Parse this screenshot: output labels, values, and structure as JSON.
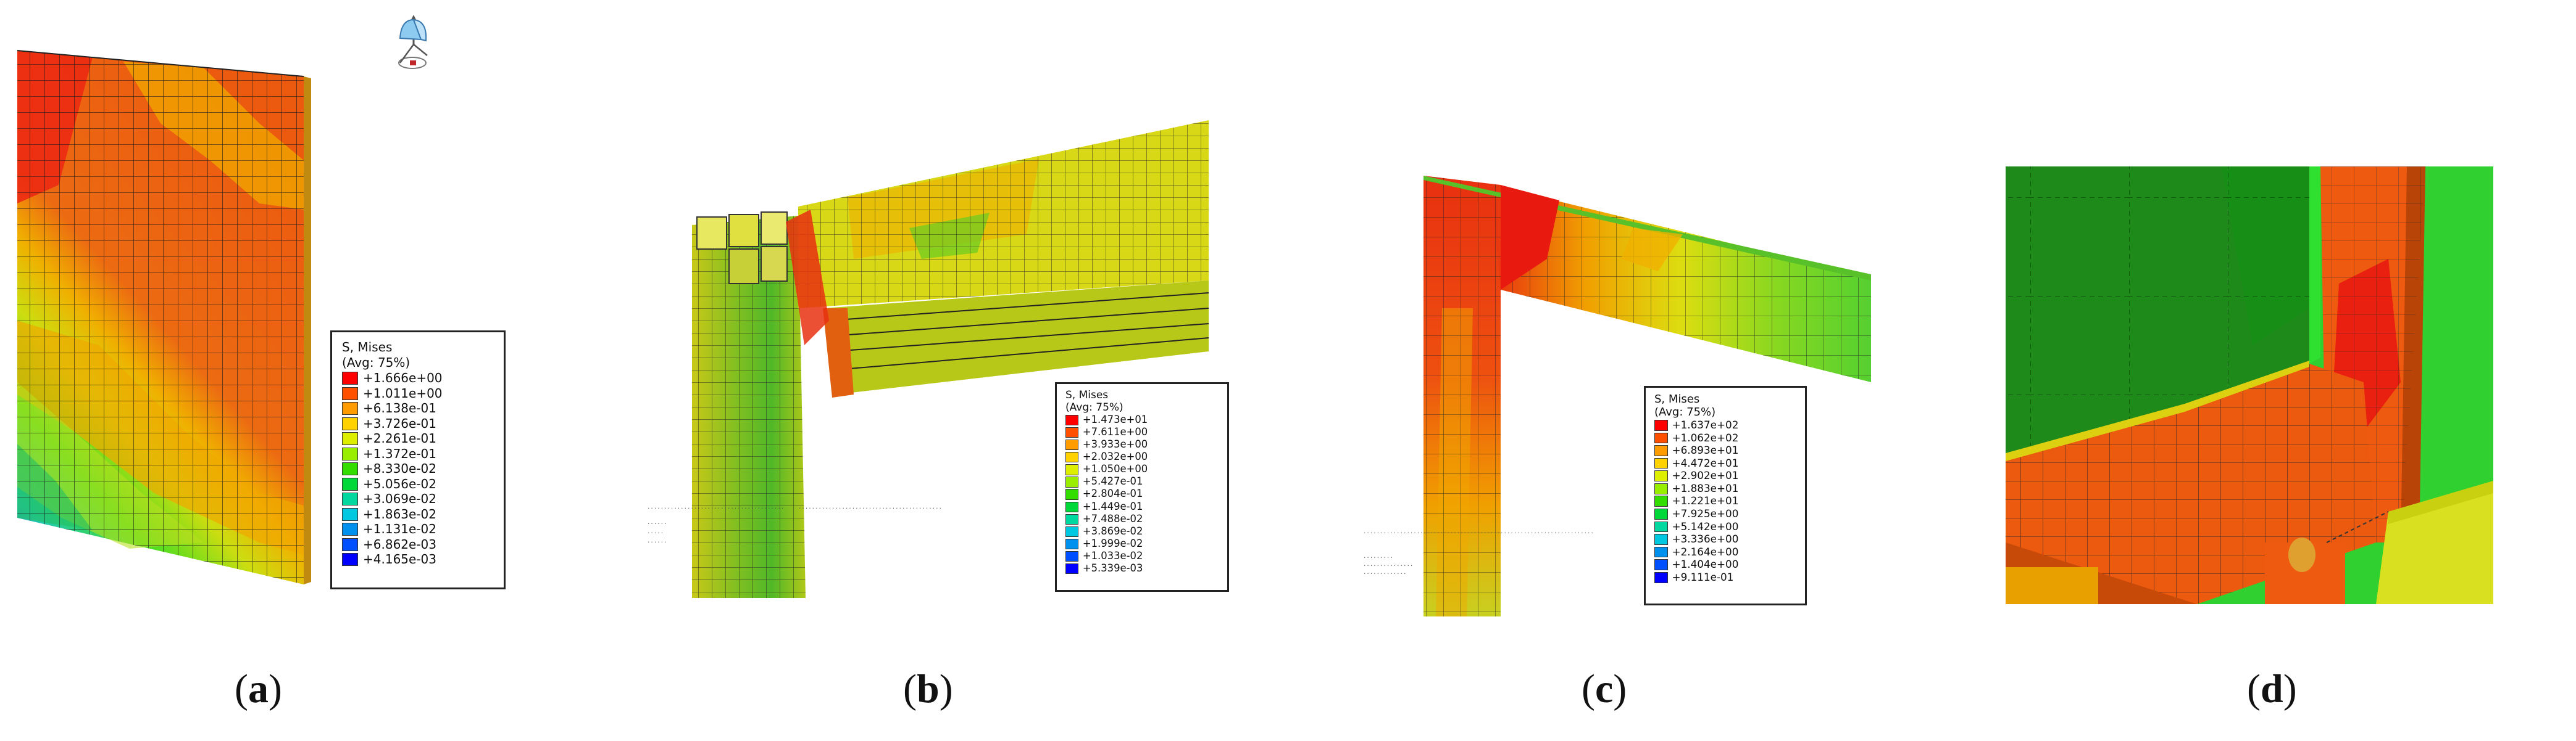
{
  "panels": [
    {
      "id": "a",
      "caption": {
        "open": "(",
        "letter": "a",
        "close": ")"
      },
      "legend": {
        "title": "S, Mises",
        "subtitle": "(Avg: 75%)",
        "entries": [
          "+1.666e+00",
          "+1.011e+00",
          "+6.138e-01",
          "+3.726e-01",
          "+2.261e-01",
          "+1.372e-01",
          "+8.330e-02",
          "+5.056e-02",
          "+3.069e-02",
          "+1.863e-02",
          "+1.131e-02",
          "+6.862e-03",
          "+4.165e-03"
        ]
      }
    },
    {
      "id": "b",
      "caption": {
        "open": "(",
        "letter": "b",
        "close": ")"
      },
      "legend": {
        "title": "S, Mises",
        "subtitle": "(Avg: 75%)",
        "entries": [
          "+1.473e+01",
          "+7.611e+00",
          "+3.933e+00",
          "+2.032e+00",
          "+1.050e+00",
          "+5.427e-01",
          "+2.804e-01",
          "+1.449e-01",
          "+7.488e-02",
          "+3.869e-02",
          "+1.999e-02",
          "+1.033e-02",
          "+5.339e-03"
        ]
      }
    },
    {
      "id": "c",
      "caption": {
        "open": "(",
        "letter": "c",
        "close": ")"
      },
      "legend": {
        "title": "S, Mises",
        "subtitle": "(Avg: 75%)",
        "entries": [
          "+1.637e+02",
          "+1.062e+02",
          "+6.893e+01",
          "+4.472e+01",
          "+2.902e+01",
          "+1.883e+01",
          "+1.221e+01",
          "+7.925e+00",
          "+5.142e+00",
          "+3.336e+00",
          "+2.164e+00",
          "+1.404e+00",
          "+9.111e-01"
        ]
      }
    },
    {
      "id": "d",
      "caption": {
        "open": "(",
        "letter": "d",
        "close": ")"
      }
    }
  ],
  "legend_colors": [
    "#ff0000",
    "#ff5000",
    "#ff9c00",
    "#ffd200",
    "#ddee00",
    "#99ee00",
    "#33dd00",
    "#00d83a",
    "#00d8a0",
    "#00c8e0",
    "#0090ee",
    "#0050ff",
    "#0000ff"
  ]
}
